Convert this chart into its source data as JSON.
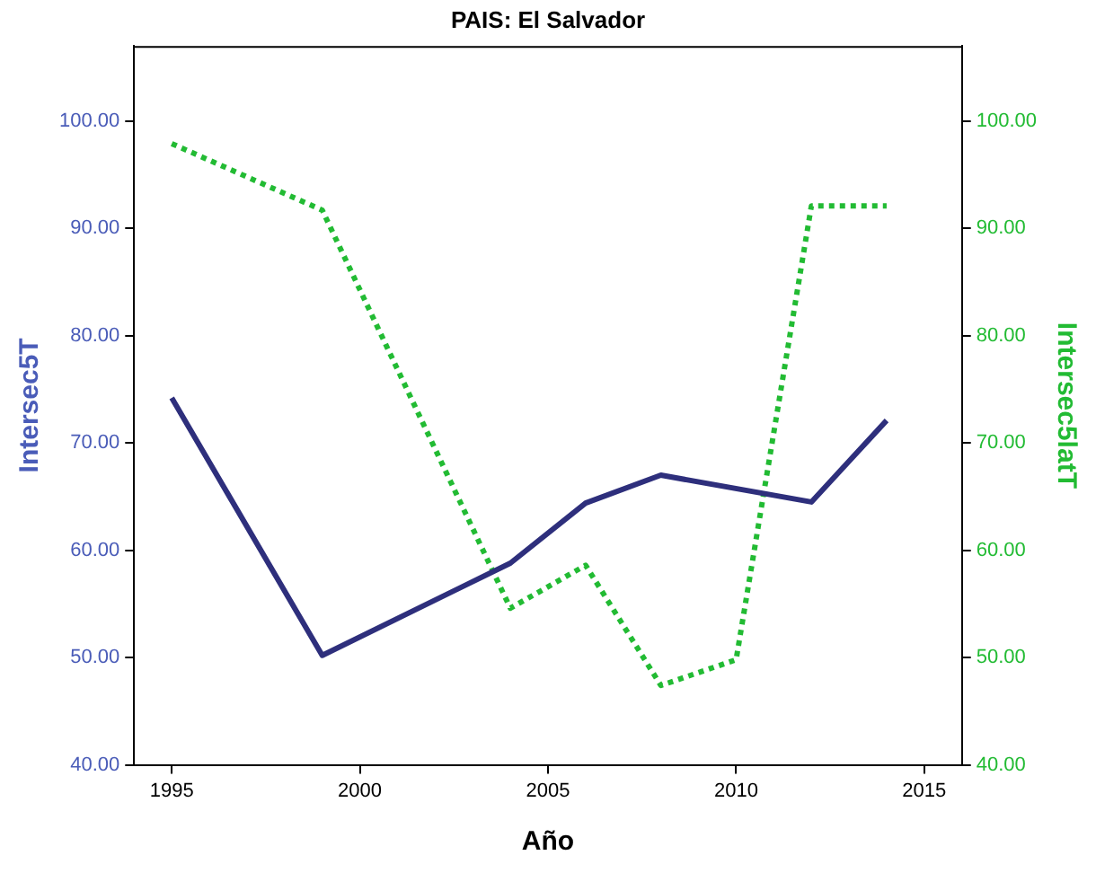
{
  "chart_data": {
    "type": "line",
    "title": "PAIS: El Salvador",
    "xlabel": "Año",
    "ylabel": "Intersec5T",
    "y2label": "Intersec5latT",
    "x": [
      1995,
      1999,
      2004,
      2006,
      2008,
      2010,
      2012,
      2014
    ],
    "series": [
      {
        "color": "#2e2f7c",
        "line_style": "solid",
        "x": [
          1995,
          1999,
          2004,
          2006,
          2008,
          2012,
          2014
        ],
        "values": [
          74.2,
          50.2,
          58.8,
          64.4,
          67.0,
          64.5,
          72.1
        ]
      },
      {
        "color": "#22bb33",
        "line_style": "dotted",
        "axis": "y2",
        "values": [
          97.9,
          91.7,
          54.6,
          58.6,
          47.4,
          49.8,
          92.1,
          92.1
        ]
      }
    ],
    "xlim": [
      1994,
      2016
    ],
    "xticks": [
      1995,
      2000,
      2005,
      2010,
      2015
    ],
    "ylim": [
      40,
      107
    ],
    "yticks": [
      {
        "value": 40,
        "label": "40.00"
      },
      {
        "value": 50,
        "label": "50.00"
      },
      {
        "value": 60,
        "label": "60.00"
      },
      {
        "value": 70,
        "label": "70.00"
      },
      {
        "value": 80,
        "label": "80.00"
      },
      {
        "value": 90,
        "label": "90.00"
      },
      {
        "value": 100,
        "label": "100.00"
      }
    ],
    "y2lim": [
      40,
      107
    ],
    "y2ticks": [
      {
        "value": 40,
        "label": "40.00"
      },
      {
        "value": 50,
        "label": "50.00"
      },
      {
        "value": 60,
        "label": "60.00"
      },
      {
        "value": 70,
        "label": "70.00"
      },
      {
        "value": 80,
        "label": "80.00"
      },
      {
        "value": 90,
        "label": "90.00"
      },
      {
        "value": 100,
        "label": "100.00"
      }
    ],
    "grid": false,
    "legend": false,
    "marker": "none"
  }
}
